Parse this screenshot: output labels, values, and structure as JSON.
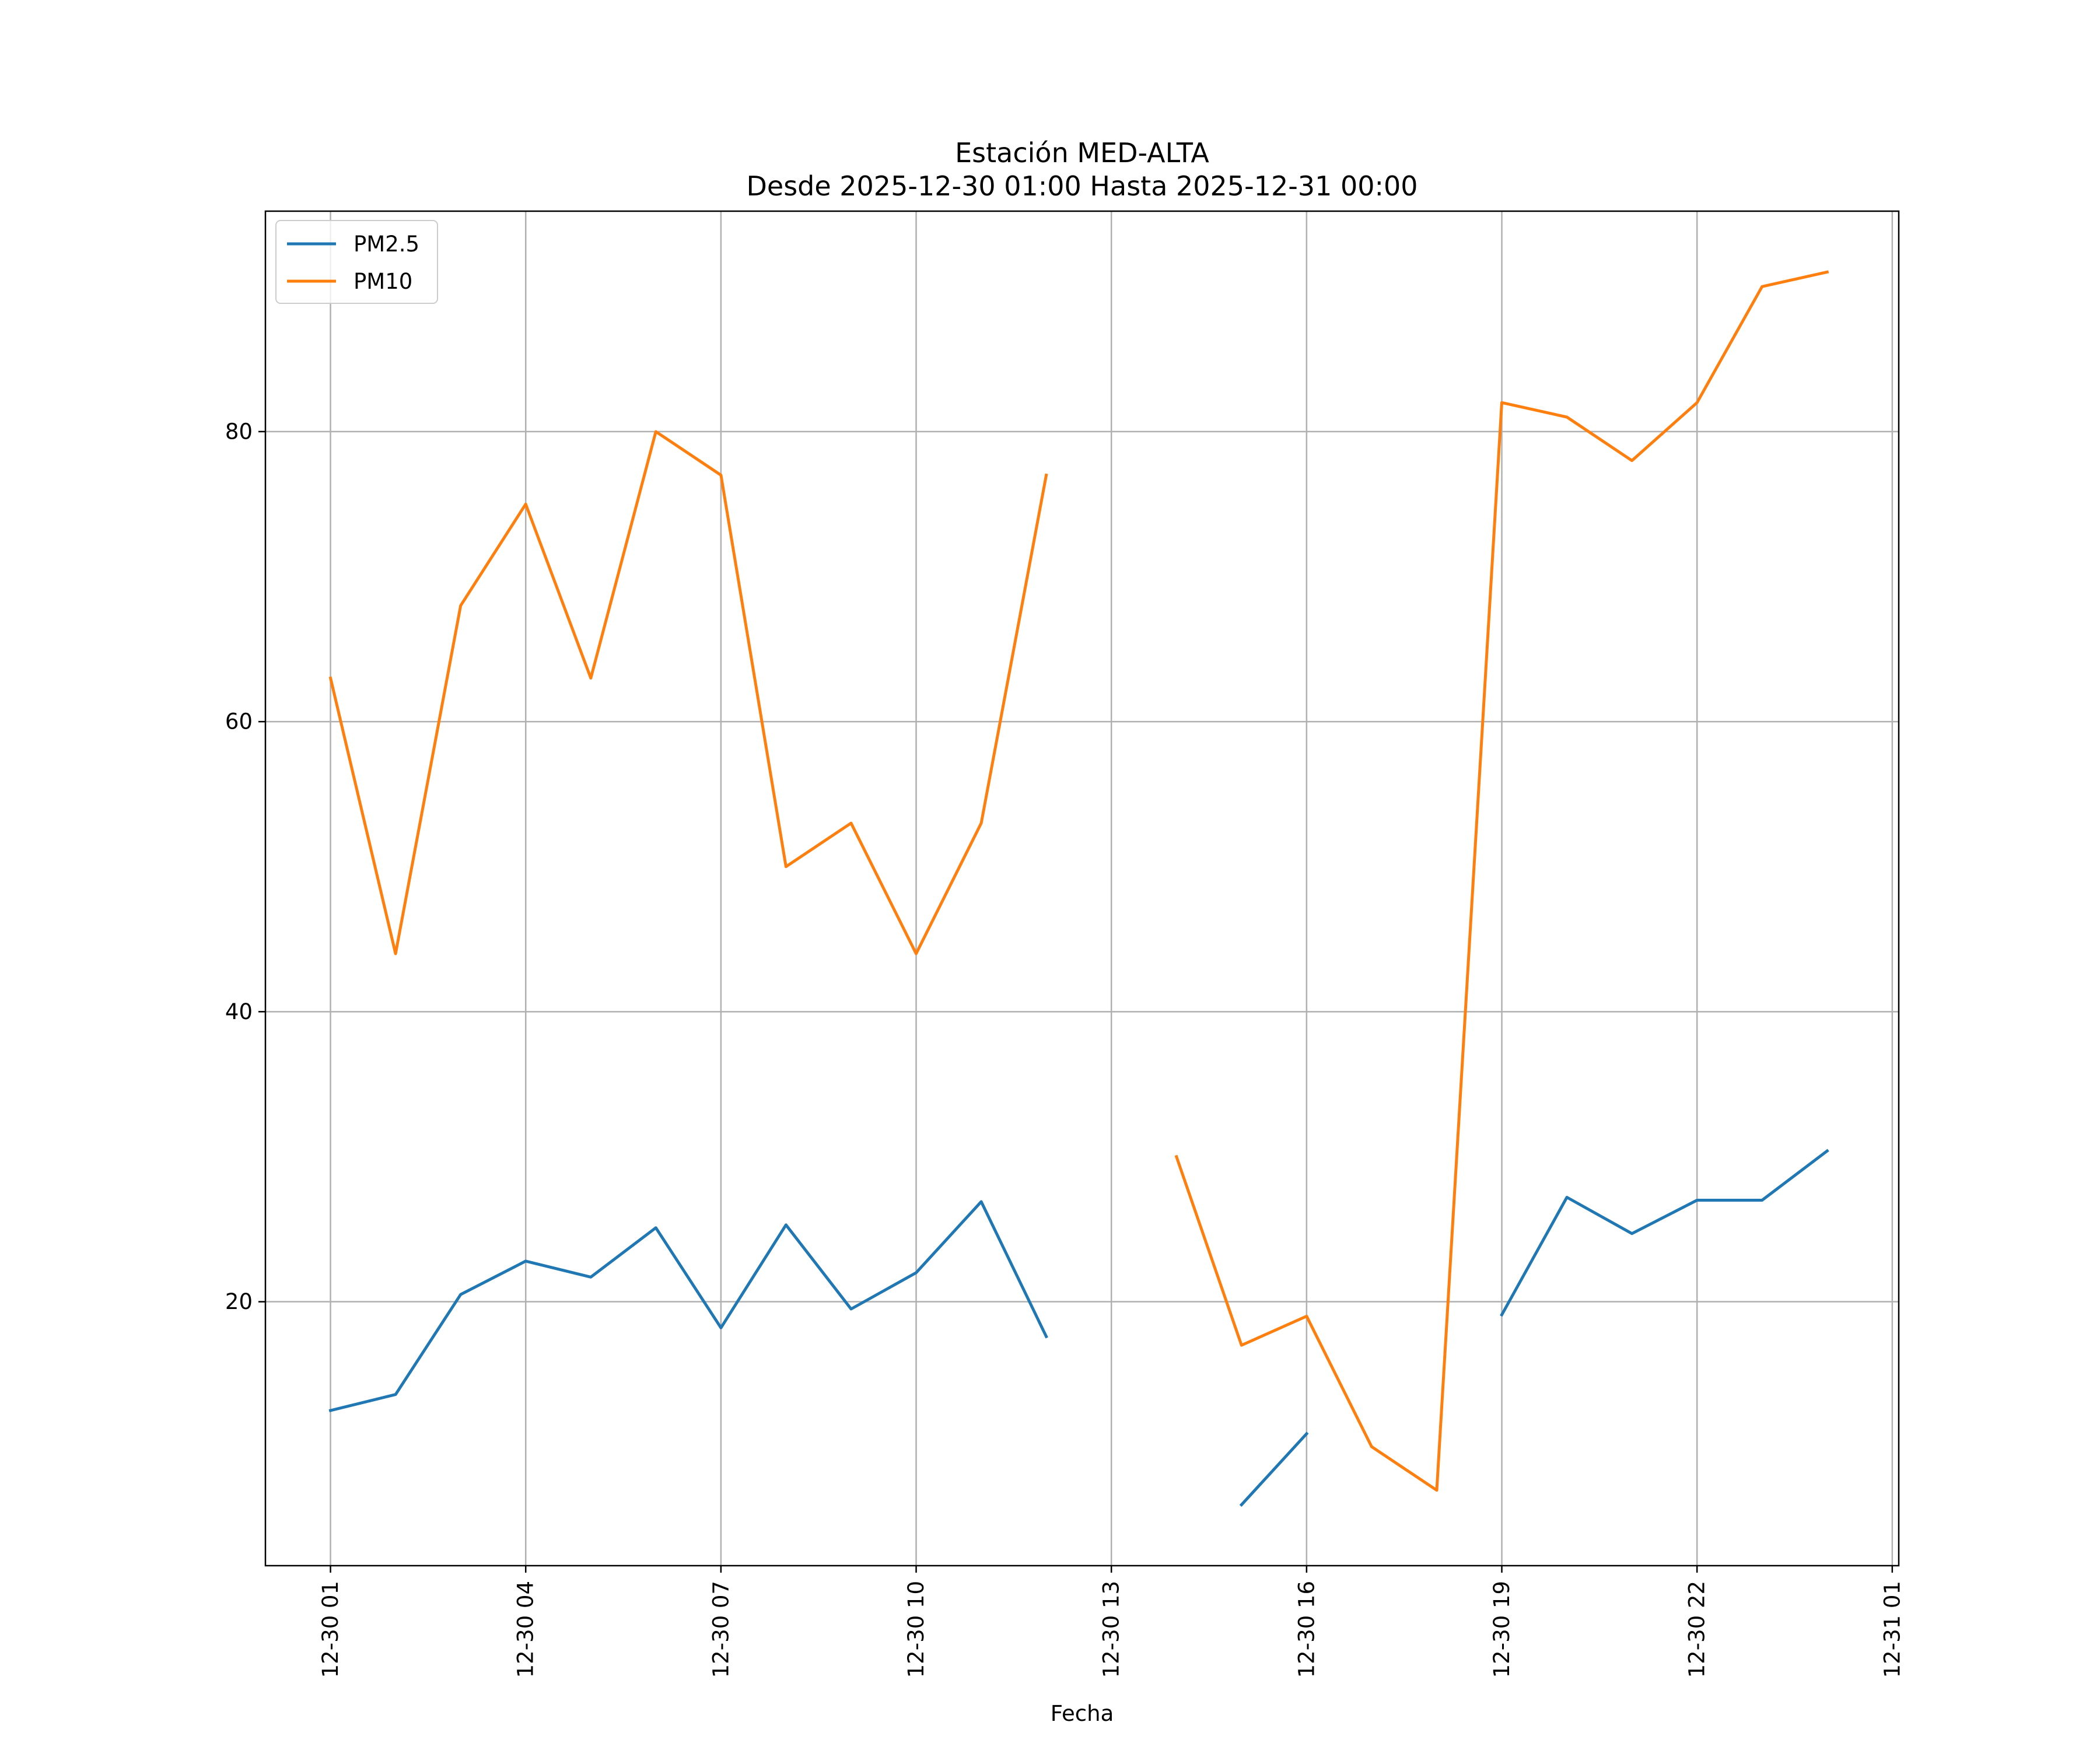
{
  "chart_data": {
    "type": "line",
    "title": "Estación MED-ALTA",
    "subtitle": "Desde 2025-12-30 01:00 Hasta 2025-12-31 00:00",
    "xlabel": "Fecha",
    "ylabel": "",
    "x_tick_labels": [
      "12-30 01",
      "12-30 04",
      "12-30 07",
      "12-30 10",
      "12-30 13",
      "12-30 16",
      "12-30 19",
      "12-30 22",
      "12-31 01"
    ],
    "x_ticks_hours": [
      1,
      4,
      7,
      10,
      13,
      16,
      19,
      22,
      25
    ],
    "y_ticks": [
      20,
      40,
      60,
      80
    ],
    "xlim_hours": [
      0.0,
      25.1
    ],
    "ylim": [
      1.8,
      95.2
    ],
    "grid": true,
    "legend_position": "upper-left",
    "x_hours": [
      1,
      2,
      3,
      4,
      5,
      6,
      7,
      8,
      9,
      10,
      11,
      12,
      13,
      14,
      15,
      16,
      17,
      18,
      19,
      20,
      21,
      22,
      23,
      24
    ],
    "series": [
      {
        "name": "PM2.5",
        "color": "#1f77b4",
        "values": [
          12.5,
          13.6,
          20.5,
          22.8,
          21.7,
          25.1,
          18.2,
          25.3,
          19.5,
          22.0,
          26.9,
          17.6,
          null,
          null,
          6.0,
          10.9,
          null,
          null,
          19.1,
          27.2,
          24.7,
          27.0,
          27.0,
          30.4
        ]
      },
      {
        "name": "PM10",
        "color": "#ff7f0e",
        "values": [
          63,
          44,
          68,
          75,
          63,
          80,
          77,
          50,
          53,
          44,
          53,
          77,
          null,
          30,
          17,
          19,
          10,
          7,
          82,
          81,
          78,
          82,
          90,
          91
        ]
      }
    ]
  }
}
